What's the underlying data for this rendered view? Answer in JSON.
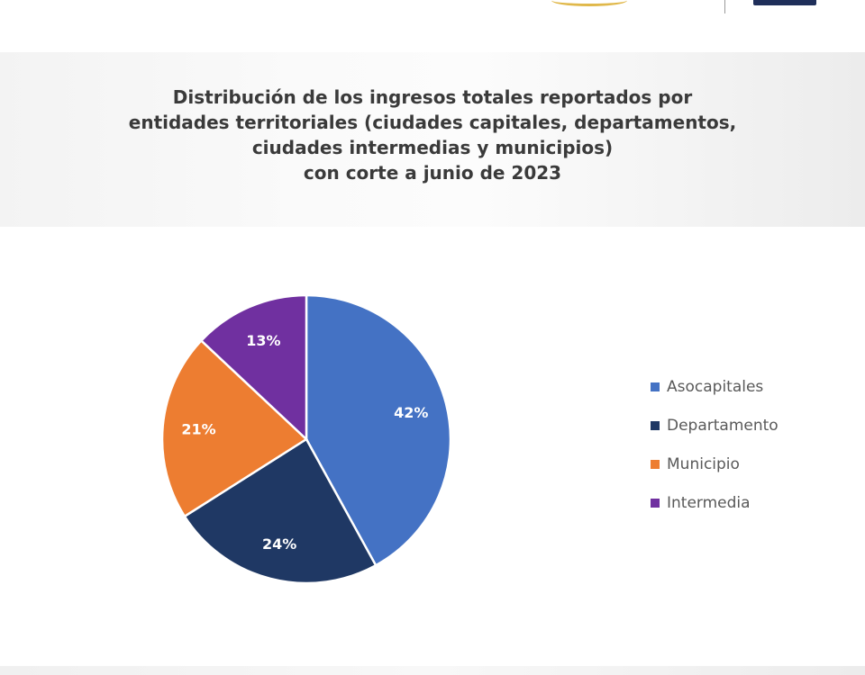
{
  "header": {
    "title_lines": [
      "Distribución de los ingresos totales reportados por",
      "entidades territoriales (ciudades capitales, departamentos,",
      "ciudades intermedias y municipios)",
      "con corte a junio de 2023"
    ]
  },
  "chart_data": {
    "type": "pie",
    "title": "Distribución de los ingresos totales reportados por entidades territoriales (ciudades capitales, departamentos, ciudades intermedias y municipios) con corte a junio de 2023",
    "categories": [
      "Asocapitales",
      "Departamento",
      "Municipio",
      "Intermedia"
    ],
    "values": [
      42,
      24,
      21,
      13
    ],
    "labels": [
      "42%",
      "24%",
      "21%",
      "13%"
    ],
    "colors": [
      "#4472C4",
      "#1F3864",
      "#ED7D31",
      "#7030A0"
    ],
    "legend_position": "right"
  }
}
